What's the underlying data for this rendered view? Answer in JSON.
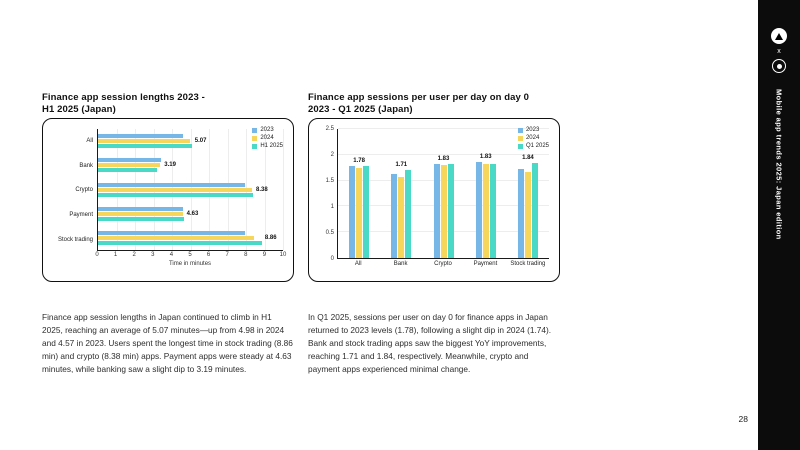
{
  "page": {
    "number": "28"
  },
  "sidebar": {
    "separator": "x",
    "title": "Mobile app trends 2025: Japan edition",
    "logos": [
      "adjust-logo",
      "apptweak-logo"
    ]
  },
  "left_section": {
    "heading": "Finance app session lengths 2023 -\nH1 2025 (Japan)",
    "paragraph": "Finance app session lengths in Japan continued to climb in H1 2025, reaching an average of 5.07 minutes—up from 4.98 in 2024 and 4.57 in 2023. Users spent the longest time in stock trading (8.86 min) and crypto (8.38 min) apps. Payment apps were steady at 4.63 minutes, while banking saw a slight dip to 3.19 minutes."
  },
  "right_section": {
    "heading": "Finance app sessions per user per day on day 0\n2023 - Q1 2025 (Japan)",
    "paragraph": "In Q1 2025, sessions per user on day 0 for finance apps in Japan returned to 2023 levels (1.78), following a slight dip in 2024 (1.74). Bank and stock trading apps saw the biggest YoY improvements, reaching 1.71 and 1.84, respectively. Meanwhile, crypto and payment apps experienced minimal change."
  },
  "colors": {
    "series_2023": "#76b7e8",
    "series_2024": "#f6d75b",
    "series_2025": "#4ad9c6",
    "band": "#0c0c0c"
  },
  "chart_data": [
    {
      "type": "bar",
      "orientation": "horizontal",
      "title": "Finance app session lengths 2023 - H1 2025 (Japan)",
      "categories": [
        "All",
        "Bank",
        "Crypto",
        "Payment",
        "Stock trading"
      ],
      "series": [
        {
          "name": "2023",
          "color": "#76b7e8",
          "values": [
            4.57,
            3.42,
            7.95,
            4.58,
            7.95
          ]
        },
        {
          "name": "2024",
          "color": "#f6d75b",
          "values": [
            4.98,
            3.35,
            8.3,
            4.6,
            8.45
          ]
        },
        {
          "name": "H1 2025",
          "color": "#4ad9c6",
          "values": [
            5.07,
            3.19,
            8.38,
            4.63,
            8.86
          ]
        }
      ],
      "labels": [
        "5.07",
        "3.19",
        "8.38",
        "4.63",
        "8.86"
      ],
      "xlabel": "Time in minutes",
      "xlim": [
        0,
        10
      ],
      "xticks": [
        0,
        1,
        2,
        3,
        4,
        5,
        6,
        7,
        8,
        9,
        10
      ],
      "grid": true,
      "legend_position": "top-right"
    },
    {
      "type": "bar",
      "orientation": "vertical",
      "title": "Finance app sessions per user per day on day 0 2023 - Q1 2025 (Japan)",
      "categories": [
        "All",
        "Bank",
        "Crypto",
        "Payment",
        "Stock trading"
      ],
      "series": [
        {
          "name": "2023",
          "color": "#76b7e8",
          "values": [
            1.78,
            1.63,
            1.82,
            1.86,
            1.73
          ]
        },
        {
          "name": "2024",
          "color": "#f6d75b",
          "values": [
            1.74,
            1.57,
            1.8,
            1.82,
            1.67
          ]
        },
        {
          "name": "Q1 2025",
          "color": "#4ad9c6",
          "values": [
            1.78,
            1.71,
            1.83,
            1.83,
            1.84
          ]
        }
      ],
      "labels": [
        "1.78",
        "1.71",
        "1.83",
        "1.83",
        "1.84"
      ],
      "ylim": [
        0,
        2.5
      ],
      "yticks": [
        0,
        0.5,
        1,
        1.5,
        2,
        2.5
      ],
      "grid": true,
      "legend_position": "top-right"
    }
  ]
}
